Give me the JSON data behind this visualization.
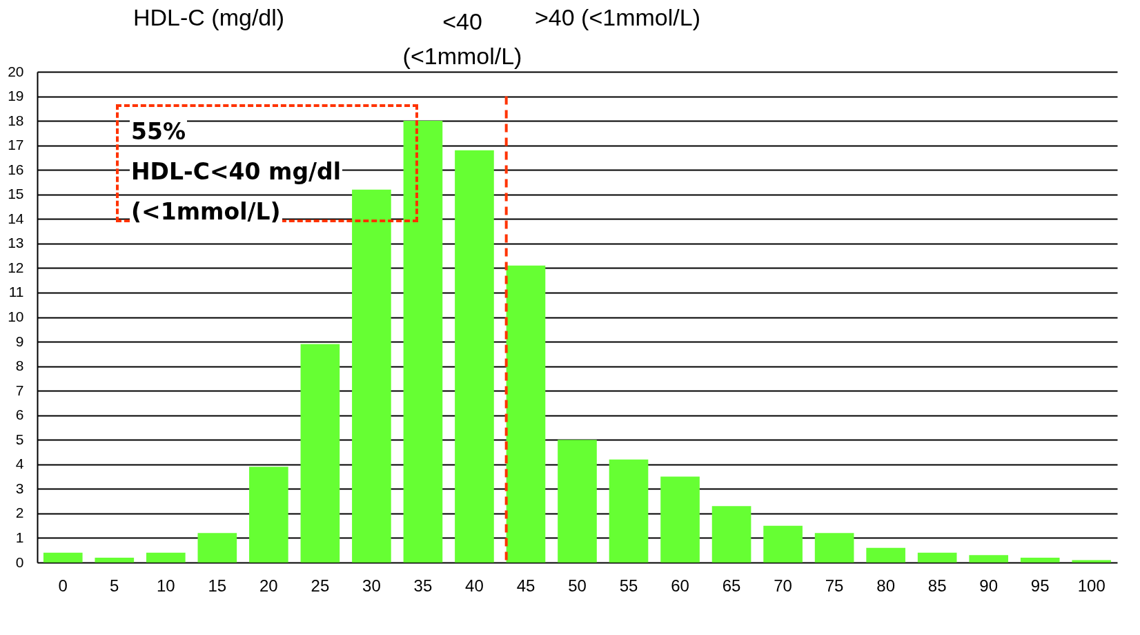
{
  "chart_data": {
    "type": "bar",
    "title": "HDL-C (mg/dl)",
    "categories": [
      "0",
      "5",
      "10",
      "15",
      "20",
      "25",
      "30",
      "35",
      "40",
      "45",
      "50",
      "55",
      "60",
      "65",
      "70",
      "75",
      "80",
      "85",
      "90",
      "95",
      "100"
    ],
    "values": [
      0.4,
      0.2,
      0.4,
      1.2,
      3.9,
      8.9,
      15.2,
      18.0,
      16.8,
      12.1,
      5.0,
      4.2,
      3.5,
      2.3,
      1.5,
      1.2,
      0.6,
      0.4,
      0.3,
      0.2,
      0.1
    ],
    "color": "#66ff33",
    "ylim": [
      0,
      20
    ],
    "yticks": [
      0,
      1,
      2,
      3,
      4,
      5,
      6,
      7,
      8,
      9,
      10,
      11,
      12,
      13,
      14,
      15,
      16,
      17,
      18,
      19,
      20
    ],
    "grid": "y",
    "ref_lines": [
      {
        "axis": "x",
        "value": "45",
        "color": "#ff3300",
        "line_style": "dashed"
      }
    ],
    "annotations": [
      "<40 (<1mmol/L)",
      ">40 (<1mmol/L)",
      "55%",
      "HDL-C<40 mg/dl",
      "(<1mmol/L)"
    ]
  }
}
